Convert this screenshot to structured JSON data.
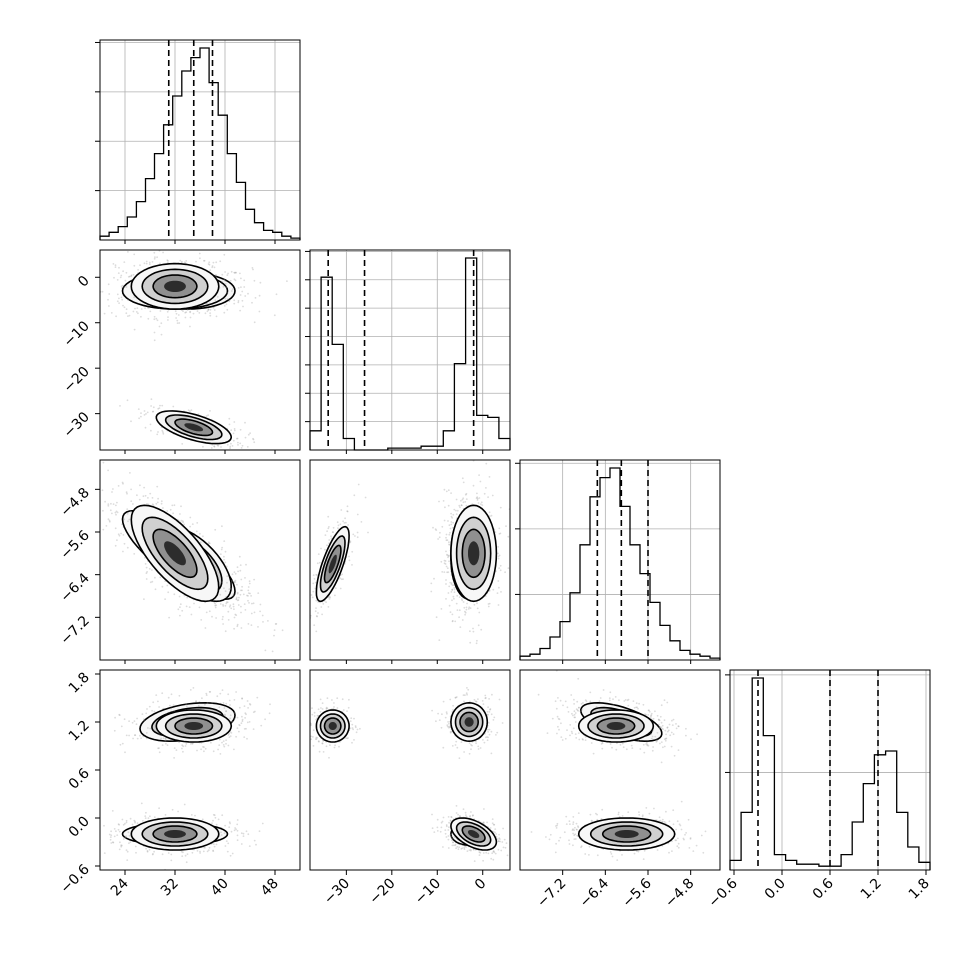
{
  "chart_data": {
    "type": "corner",
    "parameters": [
      {
        "range": [
          20,
          52
        ],
        "ticks": [
          24,
          32,
          40,
          48
        ],
        "tick_labels": [
          "24",
          "32",
          "40",
          "48"
        ]
      },
      {
        "range": [
          -38,
          6
        ],
        "ticks": [
          -30,
          -20,
          -10,
          0
        ],
        "tick_labels": [
          "−30",
          "−20",
          "−10",
          "0"
        ]
      },
      {
        "range": [
          -8.0,
          -4.25
        ],
        "ticks": [
          -7.2,
          -6.4,
          -5.6,
          -4.8
        ],
        "tick_labels": [
          "−7.2",
          "−6.4",
          "−5.6",
          "−4.8"
        ]
      },
      {
        "range": [
          -0.65,
          1.85
        ],
        "ticks": [
          -0.6,
          0.0,
          0.6,
          1.2,
          1.8
        ],
        "tick_labels": [
          "−0.6",
          "0.0",
          "0.6",
          "1.2",
          "1.8"
        ]
      }
    ],
    "quantiles": [
      [
        31,
        35,
        38
      ],
      [
        -34,
        -26,
        -2
      ],
      [
        -6.55,
        -6.1,
        -5.6
      ],
      [
        -0.3,
        0.6,
        1.2
      ]
    ],
    "histograms": [
      {
        "counts": [
          0.02,
          0.04,
          0.07,
          0.12,
          0.2,
          0.32,
          0.45,
          0.6,
          0.75,
          0.88,
          0.95,
          1.0,
          0.82,
          0.65,
          0.45,
          0.3,
          0.16,
          0.09,
          0.05,
          0.04,
          0.02,
          0.01
        ],
        "grid": 4
      },
      {
        "counts": [
          0.1,
          0.9,
          0.55,
          0.06,
          0.0,
          0.0,
          0.0,
          0.01,
          0.01,
          0.01,
          0.02,
          0.02,
          0.1,
          0.45,
          1.0,
          0.18,
          0.17,
          0.06
        ],
        "grid": 7
      },
      {
        "counts": [
          0.02,
          0.03,
          0.06,
          0.12,
          0.2,
          0.35,
          0.6,
          0.85,
          0.95,
          1.0,
          0.8,
          0.6,
          0.45,
          0.3,
          0.18,
          0.1,
          0.05,
          0.03,
          0.02,
          0.01
        ],
        "grid": 3
      },
      {
        "counts": [
          0.05,
          0.3,
          1.0,
          0.7,
          0.08,
          0.05,
          0.03,
          0.03,
          0.02,
          0.02,
          0.08,
          0.25,
          0.45,
          0.6,
          0.62,
          0.3,
          0.12,
          0.04
        ],
        "grid": 2
      }
    ],
    "clusters": [
      {
        "mean": [
          34,
          -3,
          -6.1,
          1.2
        ],
        "sd": [
          3.8,
          2.0,
          0.38,
          0.12
        ],
        "corr": [
          [
            1,
            0,
            -0.8,
            0.35
          ],
          [
            0,
            1,
            0,
            0
          ],
          [
            -0.8,
            0,
            1,
            -0.6
          ],
          [
            0.35,
            0,
            -0.6,
            1
          ]
        ]
      },
      {
        "mean": [
          32,
          -3,
          -6.0,
          -0.2
        ],
        "sd": [
          4.2,
          2.0,
          0.4,
          0.07
        ],
        "corr": [
          [
            1,
            0,
            -0.8,
            0
          ],
          [
            0,
            1,
            0,
            0
          ],
          [
            -0.8,
            0,
            1,
            0
          ],
          [
            0,
            0,
            0,
            1
          ]
        ]
      },
      {
        "mean": [
          35,
          -33,
          -6.2,
          1.15
        ],
        "sd": [
          3.0,
          1.8,
          0.35,
          0.1
        ],
        "corr": [
          [
            1,
            -0.6,
            -0.6,
            0
          ],
          [
            -0.6,
            1,
            0.75,
            0
          ],
          [
            -0.6,
            0.75,
            1,
            0
          ],
          [
            0,
            0,
            0,
            1
          ]
        ]
      },
      {
        "mean": [
          32,
          -2,
          -6.0,
          -0.2
        ],
        "sd": [
          3.5,
          2.5,
          0.45,
          0.1
        ],
        "corr": [
          [
            1,
            0,
            -0.7,
            0
          ],
          [
            0,
            1,
            0,
            -0.5
          ],
          [
            -0.7,
            0,
            1,
            0
          ],
          [
            0,
            -0.5,
            0,
            1
          ]
        ]
      }
    ],
    "grid": true,
    "quantile_line_style": "dashed"
  }
}
